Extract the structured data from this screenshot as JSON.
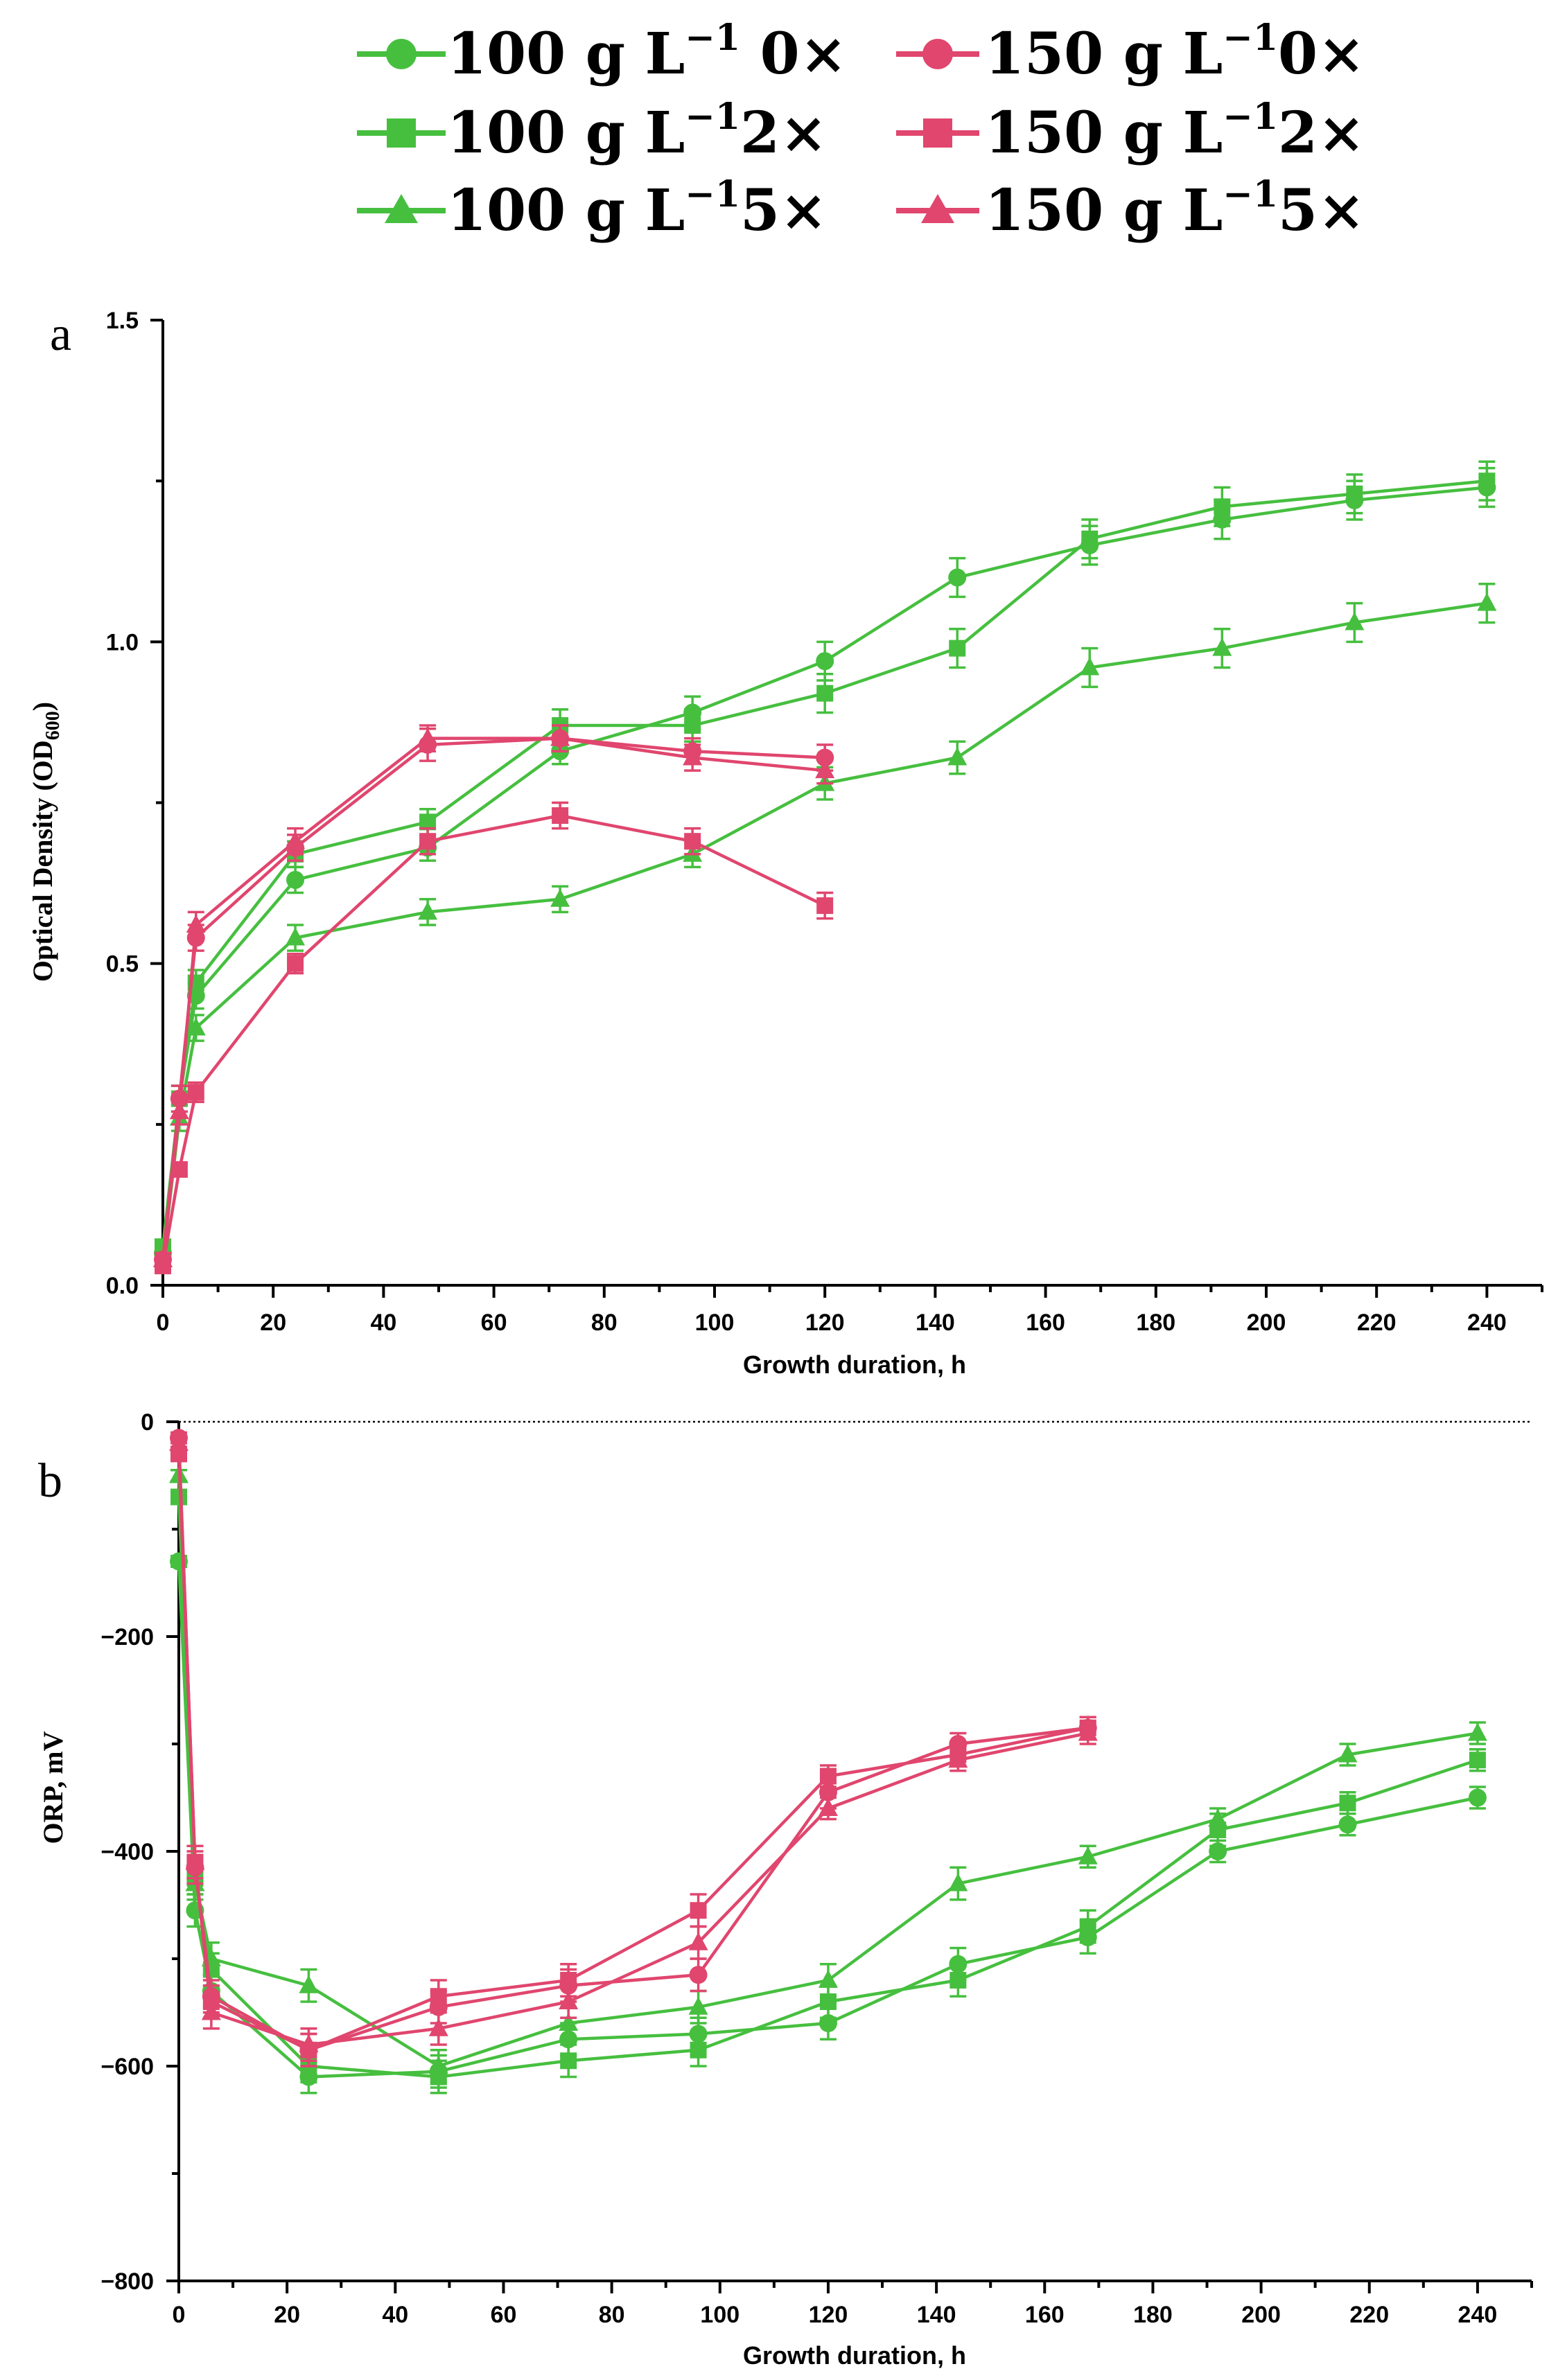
{
  "legend": {
    "items": [
      {
        "series": "100 g L⁻¹ 0×",
        "label": "100 g L",
        "sup": "−1",
        "suffix": " 0×",
        "color": "#46bf3f",
        "marker": "circle"
      },
      {
        "series": "100 g L⁻¹ 2×",
        "label": "100 g L",
        "sup": "−1",
        "suffix": "2×",
        "color": "#46bf3f",
        "marker": "square"
      },
      {
        "series": "100 g L⁻¹ 5×",
        "label": "100 g L",
        "sup": "−1",
        "suffix": "5×",
        "color": "#46bf3f",
        "marker": "triangle"
      },
      {
        "series": "150 g L⁻¹ 0×",
        "label": "150 g L",
        "sup": "−1",
        "suffix": "0×",
        "color": "#e0466e",
        "marker": "circle"
      },
      {
        "series": "150 g L⁻¹ 2×",
        "label": "150 g L",
        "sup": "−1",
        "suffix": "2×",
        "color": "#e0466e",
        "marker": "square"
      },
      {
        "series": "150 g L⁻¹ 5×",
        "label": "150 g L",
        "sup": "−1",
        "suffix": "5×",
        "color": "#e0466e",
        "marker": "triangle"
      }
    ]
  },
  "chart_data": [
    {
      "panel": "a",
      "type": "line",
      "xlabel": "Growth duration, h",
      "ylabel": "Optical Density (OD",
      "ylabel_sub": "600",
      "ylabel_close": ")",
      "xlim": [
        0,
        250
      ],
      "ylim": [
        0,
        1.5
      ],
      "xticks": [
        0,
        20,
        40,
        60,
        80,
        100,
        120,
        140,
        160,
        180,
        200,
        220,
        240
      ],
      "yticks": [
        0.0,
        0.5,
        1.0,
        1.5
      ],
      "ytick_labels": [
        "0.0",
        "0.5",
        "1.0",
        "1.5"
      ],
      "zero_line": false,
      "series": [
        {
          "name": "100 g L⁻¹ 0×",
          "color": "#46bf3f",
          "marker": "circle",
          "x": [
            0,
            3,
            6,
            24,
            48,
            72,
            96,
            120,
            144,
            168,
            192,
            216,
            240
          ],
          "y": [
            0.05,
            0.29,
            0.45,
            0.63,
            0.68,
            0.83,
            0.89,
            0.97,
            1.1,
            1.15,
            1.19,
            1.22,
            1.24
          ],
          "err": [
            0.01,
            0.02,
            0.02,
            0.02,
            0.02,
            0.02,
            0.025,
            0.03,
            0.03,
            0.03,
            0.03,
            0.03,
            0.03
          ]
        },
        {
          "name": "100 g L⁻¹ 2×",
          "color": "#46bf3f",
          "marker": "square",
          "x": [
            0,
            3,
            6,
            24,
            48,
            72,
            96,
            120,
            144,
            168,
            192,
            216,
            240
          ],
          "y": [
            0.06,
            0.29,
            0.47,
            0.67,
            0.72,
            0.87,
            0.87,
            0.92,
            0.99,
            1.16,
            1.21,
            1.23,
            1.25
          ],
          "err": [
            0.01,
            0.02,
            0.02,
            0.02,
            0.02,
            0.025,
            0.025,
            0.03,
            0.03,
            0.03,
            0.03,
            0.03,
            0.03
          ]
        },
        {
          "name": "100 g L⁻¹ 5×",
          "color": "#46bf3f",
          "marker": "triangle",
          "x": [
            0,
            3,
            6,
            24,
            48,
            72,
            96,
            120,
            144,
            168,
            192,
            216,
            240
          ],
          "y": [
            0.04,
            0.26,
            0.4,
            0.54,
            0.58,
            0.6,
            0.67,
            0.78,
            0.82,
            0.96,
            0.99,
            1.03,
            1.06
          ],
          "err": [
            0.01,
            0.02,
            0.02,
            0.02,
            0.02,
            0.02,
            0.02,
            0.025,
            0.025,
            0.03,
            0.03,
            0.03,
            0.03
          ]
        },
        {
          "name": "150 g L⁻¹ 0×",
          "color": "#e0466e",
          "marker": "circle",
          "x": [
            0,
            3,
            6,
            24,
            48,
            72,
            96,
            120
          ],
          "y": [
            0.04,
            0.29,
            0.54,
            0.68,
            0.84,
            0.85,
            0.83,
            0.82
          ],
          "err": [
            0.01,
            0.02,
            0.02,
            0.02,
            0.025,
            0.02,
            0.02,
            0.02
          ]
        },
        {
          "name": "150 g L⁻¹ 2×",
          "color": "#e0466e",
          "marker": "square",
          "x": [
            0,
            3,
            6,
            24,
            48,
            72,
            96,
            120
          ],
          "y": [
            0.03,
            0.18,
            0.3,
            0.5,
            0.69,
            0.73,
            0.69,
            0.59
          ],
          "err": [
            0.01,
            0.01,
            0.015,
            0.015,
            0.02,
            0.02,
            0.02,
            0.02
          ]
        },
        {
          "name": "150 g L⁻¹ 5×",
          "color": "#e0466e",
          "marker": "triangle",
          "x": [
            0,
            3,
            6,
            24,
            48,
            72,
            96,
            120
          ],
          "y": [
            0.04,
            0.27,
            0.56,
            0.69,
            0.85,
            0.85,
            0.82,
            0.8
          ],
          "err": [
            0.01,
            0.02,
            0.02,
            0.02,
            0.02,
            0.02,
            0.02,
            0.02
          ]
        }
      ]
    },
    {
      "panel": "b",
      "type": "line",
      "xlabel": "Growth duration, h",
      "ylabel": "ORP, mV",
      "xlim": [
        0,
        250
      ],
      "ylim": [
        -800,
        0
      ],
      "xticks": [
        0,
        20,
        40,
        60,
        80,
        100,
        120,
        140,
        160,
        180,
        200,
        220,
        240
      ],
      "yticks": [
        0,
        -200,
        -400,
        -600,
        -800
      ],
      "ytick_labels": [
        "0",
        "−200",
        "−400",
        "−600",
        "−800"
      ],
      "zero_line": true,
      "series": [
        {
          "name": "100 g L⁻¹ 0×",
          "color": "#46bf3f",
          "marker": "circle",
          "x": [
            0,
            3,
            6,
            24,
            48,
            72,
            96,
            120,
            144,
            168,
            192,
            216,
            240
          ],
          "y": [
            -130,
            -455,
            -530,
            -610,
            -605,
            -575,
            -570,
            -560,
            -505,
            -480,
            -400,
            -375,
            -350
          ],
          "err": [
            5,
            15,
            15,
            15,
            15,
            15,
            15,
            15,
            15,
            15,
            10,
            10,
            10
          ]
        },
        {
          "name": "100 g L⁻¹ 2×",
          "color": "#46bf3f",
          "marker": "square",
          "x": [
            0,
            3,
            6,
            24,
            48,
            72,
            96,
            120,
            144,
            168,
            192,
            216,
            240
          ],
          "y": [
            -70,
            -425,
            -510,
            -600,
            -610,
            -595,
            -585,
            -540,
            -520,
            -470,
            -380,
            -355,
            -315
          ],
          "err": [
            5,
            15,
            15,
            15,
            15,
            15,
            15,
            15,
            15,
            15,
            15,
            10,
            10
          ]
        },
        {
          "name": "100 g L⁻¹ 5×",
          "color": "#46bf3f",
          "marker": "triangle",
          "x": [
            0,
            3,
            6,
            24,
            48,
            72,
            96,
            120,
            144,
            168,
            192,
            216,
            240
          ],
          "y": [
            -50,
            -430,
            -500,
            -525,
            -600,
            -560,
            -545,
            -520,
            -430,
            -405,
            -370,
            -310,
            -290
          ],
          "err": [
            5,
            15,
            15,
            15,
            15,
            15,
            15,
            15,
            15,
            10,
            10,
            10,
            10
          ]
        },
        {
          "name": "150 g L⁻¹ 0×",
          "color": "#e0466e",
          "marker": "circle",
          "x": [
            0,
            3,
            6,
            24,
            48,
            72,
            96,
            120,
            144,
            168
          ],
          "y": [
            -15,
            -415,
            -535,
            -585,
            -545,
            -525,
            -515,
            -345,
            -300,
            -285
          ],
          "err": [
            5,
            15,
            15,
            15,
            15,
            15,
            15,
            15,
            10,
            10
          ]
        },
        {
          "name": "150 g L⁻¹ 2×",
          "color": "#e0466e",
          "marker": "square",
          "x": [
            0,
            3,
            6,
            24,
            48,
            72,
            96,
            120,
            144,
            168
          ],
          "y": [
            -30,
            -410,
            -540,
            -585,
            -535,
            -520,
            -455,
            -330,
            -310,
            -285
          ],
          "err": [
            5,
            15,
            15,
            15,
            15,
            15,
            15,
            10,
            10,
            10
          ]
        },
        {
          "name": "150 g L⁻¹ 5×",
          "color": "#e0466e",
          "marker": "triangle",
          "x": [
            0,
            3,
            6,
            24,
            48,
            72,
            96,
            120,
            144,
            168
          ],
          "y": [
            -20,
            -410,
            -550,
            -580,
            -565,
            -540,
            -485,
            -360,
            -315,
            -290
          ],
          "err": [
            5,
            15,
            15,
            15,
            15,
            15,
            15,
            10,
            10,
            10
          ]
        }
      ]
    }
  ]
}
